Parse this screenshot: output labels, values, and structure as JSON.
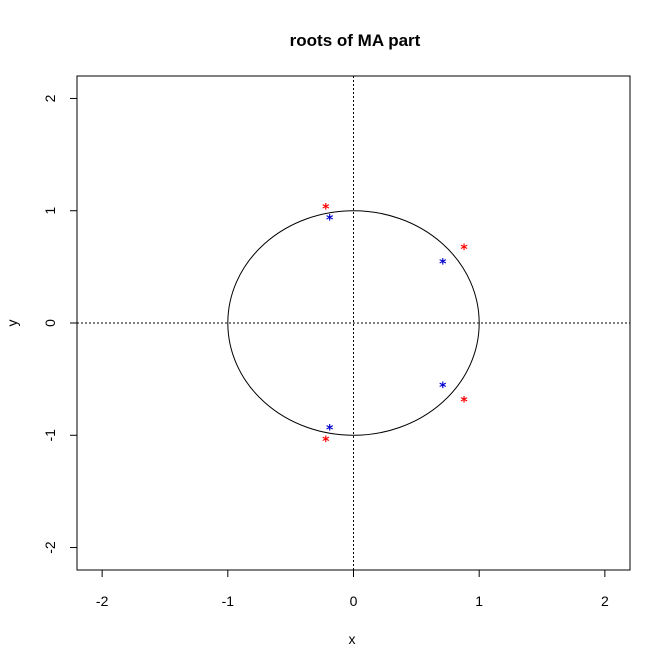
{
  "chart_data": {
    "type": "scatter",
    "title": "roots of MA part",
    "xlabel": "x",
    "ylabel": "y",
    "xlim": [
      -2.2,
      2.2
    ],
    "ylim": [
      -2.2,
      2.2
    ],
    "x_ticks": [
      -2,
      -1,
      0,
      1,
      2
    ],
    "y_ticks": [
      -2,
      -1,
      0,
      1,
      2
    ],
    "x_tick_labels": [
      "-2",
      "-1",
      "0",
      "1",
      "2"
    ],
    "y_tick_labels": [
      "-2",
      "-1",
      "0",
      "1",
      "2"
    ],
    "grid": false,
    "reference_lines": {
      "x": 0,
      "y": 0,
      "style": "dotted"
    },
    "unit_circle": {
      "radius": 1
    },
    "marker_symbol": "*",
    "series": [
      {
        "color": "#ff0000",
        "points": [
          {
            "x": -0.22,
            "y": 1.03
          },
          {
            "x": 0.88,
            "y": 0.67
          },
          {
            "x": 0.88,
            "y": -0.69
          },
          {
            "x": -0.22,
            "y": -1.04
          }
        ]
      },
      {
        "color": "#0000cc",
        "points": [
          {
            "x": -0.19,
            "y": 0.93
          },
          {
            "x": 0.71,
            "y": 0.54
          },
          {
            "x": 0.71,
            "y": -0.56
          },
          {
            "x": -0.19,
            "y": -0.94
          }
        ]
      }
    ]
  }
}
